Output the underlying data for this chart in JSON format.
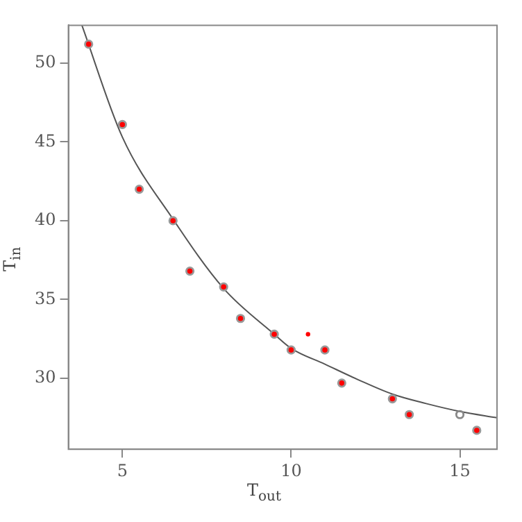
{
  "chart_data": {
    "type": "scatter",
    "xlabel": "T$_{out}$",
    "ylabel": "T$_{in}$",
    "xlim": [
      3.4,
      16.1
    ],
    "ylim": [
      25.5,
      52.4
    ],
    "xticks": [
      5,
      10,
      15
    ],
    "yticks": [
      30,
      35,
      40,
      45,
      50
    ],
    "grid": false,
    "legend": false,
    "marker": "circle",
    "series": [
      {
        "color": "#ff0000",
        "x": [
          4,
          5,
          5.5,
          6.5,
          7,
          8,
          8.5,
          9.5,
          10,
          11,
          11.5,
          13,
          13.5,
          15.5
        ],
        "values": [
          51.2,
          46.1,
          42.0,
          40.0,
          36.8,
          35.8,
          33.8,
          32.8,
          31.8,
          31.8,
          29.7,
          28.7,
          27.7,
          26.7
        ]
      },
      {
        "color": "#ff0000",
        "x": [
          10.5
        ],
        "values": [
          32.8
        ]
      },
      {
        "color": "#888888",
        "x": [
          15
        ],
        "values": [
          27.7
        ]
      },
      {
        "type": "line",
        "color": "#555555",
        "marker": "none",
        "line_style": "solid",
        "x": [
          3.8,
          5,
          6.5,
          8,
          9.5,
          10,
          11,
          12,
          13,
          14,
          15,
          16.1
        ],
        "values": [
          52.4,
          45.3,
          40.1,
          35.7,
          32.8,
          31.9,
          30.9,
          29.9,
          29.0,
          28.4,
          27.9,
          27.5
        ]
      }
    ]
  }
}
